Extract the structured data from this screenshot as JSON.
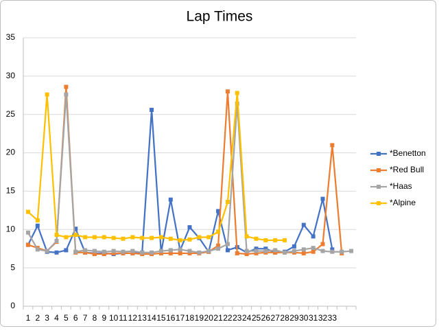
{
  "chart_data": {
    "type": "line",
    "title": "Lap Times",
    "categories": [
      "1",
      "2",
      "3",
      "4",
      "5",
      "6",
      "7",
      "8",
      "9",
      "10",
      "11",
      "12",
      "13",
      "14",
      "15",
      "16",
      "17",
      "18",
      "19",
      "20",
      "21",
      "22",
      "23",
      "24",
      "25",
      "26",
      "27",
      "28",
      "29",
      "30",
      "31",
      "32",
      "33",
      null,
      null
    ],
    "series": [
      {
        "name": "*Benetton",
        "color": "#4472c4",
        "values": [
          8.0,
          10.5,
          7.1,
          7.0,
          7.3,
          10.1,
          7.0,
          6.9,
          6.9,
          6.8,
          6.9,
          6.9,
          7.0,
          25.6,
          7.0,
          13.9,
          7.3,
          10.3,
          8.9,
          7.1,
          12.4,
          7.3,
          7.7,
          7.0,
          7.5,
          7.5,
          7.0,
          7.1,
          7.8,
          10.6,
          9.1,
          14.0,
          7.4,
          null,
          null
        ]
      },
      {
        "name": "*Red Bull",
        "color": "#ed7d31",
        "values": [
          8.0,
          7.6,
          7.2,
          8.4,
          28.6,
          7.0,
          7.0,
          6.8,
          6.8,
          6.9,
          6.9,
          6.9,
          6.8,
          6.8,
          6.9,
          6.9,
          6.9,
          6.9,
          6.9,
          7.1,
          7.9,
          28.0,
          6.9,
          6.8,
          6.9,
          7.0,
          7.0,
          7.0,
          7.0,
          6.9,
          7.1,
          8.1,
          21.0,
          6.9,
          null
        ]
      },
      {
        "name": "*Haas",
        "color": "#a5a5a5",
        "values": [
          9.6,
          7.4,
          7.2,
          8.5,
          27.6,
          7.1,
          7.3,
          7.2,
          7.1,
          7.2,
          7.1,
          7.2,
          7.0,
          7.0,
          7.2,
          7.3,
          7.4,
          7.2,
          7.0,
          7.2,
          7.5,
          8.1,
          26.4,
          7.2,
          7.2,
          7.2,
          7.3,
          7.0,
          7.2,
          7.4,
          7.6,
          7.2,
          7.1,
          7.1,
          7.2
        ]
      },
      {
        "name": "*Alpine",
        "color": "#ffc000",
        "values": [
          12.3,
          11.2,
          27.6,
          9.3,
          9.0,
          9.3,
          9.0,
          9.0,
          9.0,
          8.9,
          8.8,
          9.0,
          8.9,
          8.9,
          9.0,
          8.8,
          8.6,
          8.7,
          9.0,
          9.0,
          9.7,
          13.6,
          27.8,
          9.1,
          8.8,
          8.6,
          8.6,
          8.6,
          null,
          null,
          null,
          null,
          null,
          null,
          null
        ]
      }
    ],
    "ylim": [
      0,
      35
    ],
    "yticks": [
      0,
      5,
      10,
      15,
      20,
      25,
      30,
      35
    ],
    "grid": true,
    "legend": "right"
  }
}
